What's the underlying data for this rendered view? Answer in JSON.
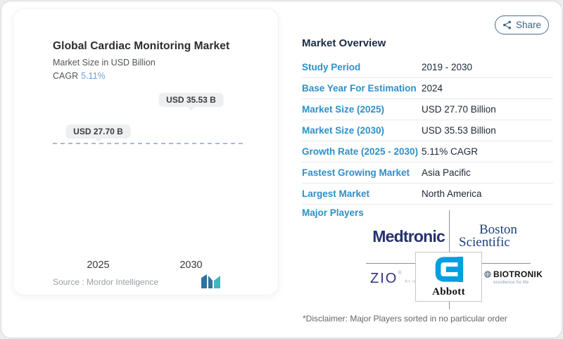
{
  "share_button": {
    "label": "Share"
  },
  "chart_panel": {
    "title": "Global Cardiac Monitoring Market",
    "subtitle": "Market Size in USD Billion",
    "cagr_label": "CAGR",
    "cagr_value": "5.11%",
    "source_text": "Source :  Mordor Intelligence"
  },
  "chart_data": {
    "type": "bar",
    "title": "Global Cardiac Monitoring Market",
    "ylabel": "Market Size in USD Billion",
    "categories": [
      "2025",
      "2030"
    ],
    "values": [
      27.7,
      35.53
    ],
    "bar_labels": [
      "USD 27.70 B",
      "USD 35.53 B"
    ],
    "cagr_percent": 5.11,
    "reference_line_value": 27.7,
    "bar_gradient": [
      "#5d8bb6",
      "#7bc0ca"
    ],
    "legend": "none",
    "grid": "off"
  },
  "overview": {
    "title": "Market Overview",
    "rows": [
      {
        "label": "Study Period",
        "value": "2019 - 2030"
      },
      {
        "label": "Base Year For Estimation",
        "value": "2024"
      },
      {
        "label": "Market Size (2025)",
        "value": "USD 27.70 Billion"
      },
      {
        "label": "Market Size (2030)",
        "value": "USD 35.53 Billion"
      },
      {
        "label": "Growth Rate (2025 - 2030)",
        "value": "5.11% CAGR"
      },
      {
        "label": "Fastest Growing Market",
        "value": "Asia Pacific"
      },
      {
        "label": "Largest Market",
        "value": "North America"
      }
    ],
    "major_players_label": "Major Players",
    "players": {
      "medtronic": "Medtronic",
      "boston_line1": "Boston",
      "boston_line2": "Scientific",
      "zio": "ZIO",
      "zio_sub": "BY iRHYTHM",
      "abbott": "Abbott",
      "biotronik": "BIOTRONIK",
      "biotronik_tagline": "excellence for life"
    },
    "disclaimer": "*Disclaimer: Major Players sorted in no particular order"
  },
  "colors": {
    "accent_blue": "#2e8fc7",
    "header_navy": "#1c2b45",
    "cagr_blue": "#6aa2d8",
    "share_teal": "#3a6885",
    "dash_line": "#a7bad4"
  }
}
